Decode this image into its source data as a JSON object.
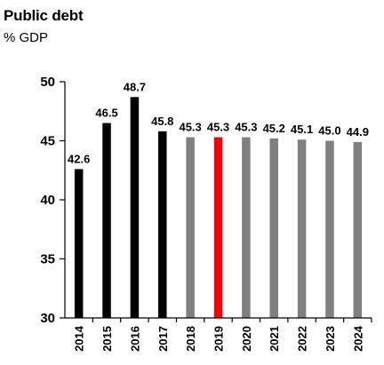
{
  "chart_data": {
    "type": "bar",
    "title": "Public debt",
    "subtitle": "% GDP",
    "xlabel": "",
    "ylabel": "",
    "categories": [
      "2014",
      "2015",
      "2016",
      "2017",
      "2018",
      "2019",
      "2020",
      "2021",
      "2022",
      "2023",
      "2024"
    ],
    "values": [
      42.6,
      46.5,
      48.7,
      45.8,
      45.3,
      45.3,
      45.3,
      45.2,
      45.1,
      45.0,
      44.9
    ],
    "value_labels": [
      "42.6",
      "46.5",
      "48.7",
      "45.8",
      "45.3",
      "45.3",
      "45.3",
      "45.2",
      "45.1",
      "45.0",
      "44.9"
    ],
    "bar_colors": [
      "#000000",
      "#000000",
      "#000000",
      "#000000",
      "#808080",
      "#ff0000",
      "#808080",
      "#808080",
      "#808080",
      "#808080",
      "#808080"
    ],
    "ylim": [
      30,
      50
    ],
    "yticks": [
      "30",
      "35",
      "40",
      "45",
      "50"
    ],
    "grid": false,
    "legend": "none"
  }
}
